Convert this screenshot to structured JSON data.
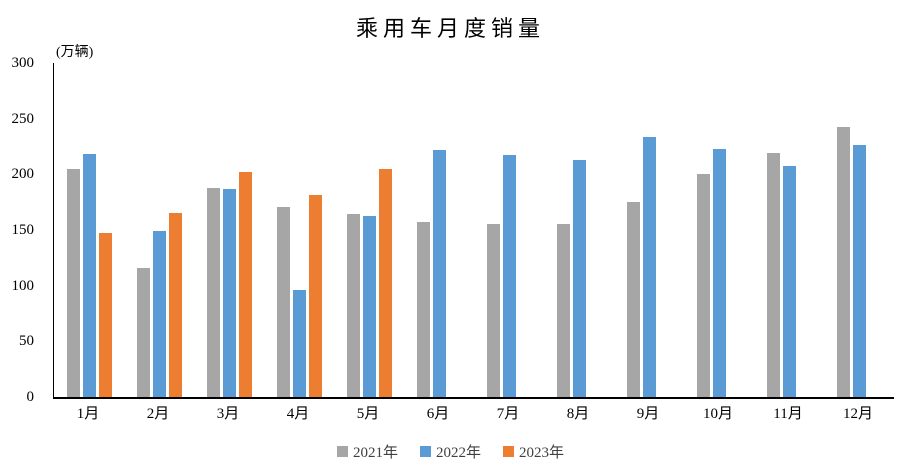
{
  "chart_data": {
    "type": "bar",
    "title": "乘用车月度销量",
    "ylabel_unit": "(万辆)",
    "xlabel": "",
    "categories": [
      "1月",
      "2月",
      "3月",
      "4月",
      "5月",
      "6月",
      "7月",
      "8月",
      "9月",
      "10月",
      "11月",
      "12月"
    ],
    "series": [
      {
        "name": "2021年",
        "color": "#a6a6a6",
        "values": [
          204.5,
          115.6,
          187.4,
          170.4,
          164.6,
          156.9,
          155.1,
          155.2,
          175.1,
          200.7,
          219.2,
          242.2
        ]
      },
      {
        "name": "2022年",
        "color": "#5b9bd5",
        "values": [
          218.6,
          148.7,
          186.4,
          96.5,
          162.3,
          222.2,
          217.4,
          212.5,
          233.2,
          223.1,
          207.5,
          226.3
        ]
      },
      {
        "name": "2023年",
        "color": "#ed7d31",
        "values": [
          146.9,
          165.3,
          201.7,
          181.1,
          205.1,
          null,
          null,
          null,
          null,
          null,
          null,
          null
        ]
      }
    ],
    "ylim": [
      0,
      300
    ],
    "yticks": [
      300,
      250,
      200,
      150,
      100,
      50,
      0
    ],
    "grid": false,
    "legend_position": "bottom",
    "axis_color": "#000000",
    "text_color": "#000000",
    "legend_text_color": "#404040"
  }
}
